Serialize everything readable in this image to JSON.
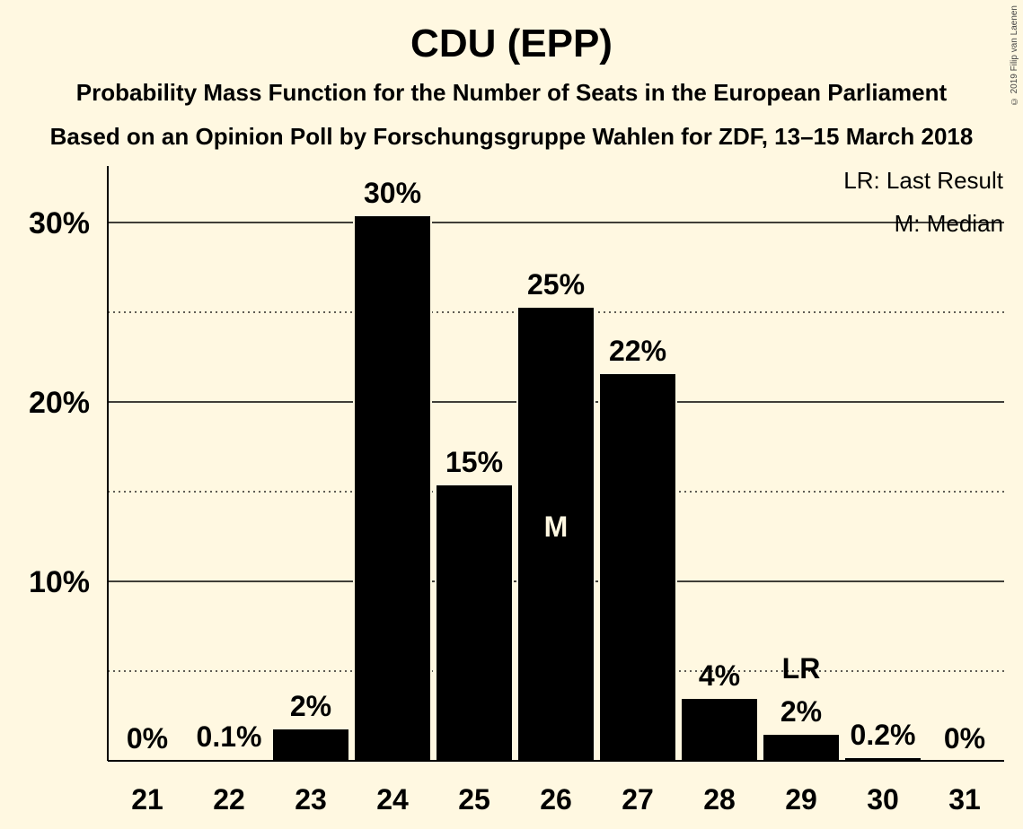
{
  "header": {
    "title": "CDU (EPP)",
    "subtitle": "Probability Mass Function for the Number of Seats in the European Parliament",
    "subtitle2": "Based on an Opinion Poll by Forschungsgruppe Wahlen for ZDF, 13–15 March 2018",
    "copyright": "© 2019 Filip van Laenen"
  },
  "legend": {
    "lr": "LR: Last Result",
    "m": "M: Median",
    "placement": "top-right"
  },
  "chart_data": {
    "type": "bar",
    "title": "CDU (EPP)",
    "xlabel": "",
    "ylabel": "",
    "categories": [
      "21",
      "22",
      "23",
      "24",
      "25",
      "26",
      "27",
      "28",
      "29",
      "30",
      "31"
    ],
    "values": [
      0,
      0.1,
      1.8,
      30.4,
      15.4,
      25.3,
      21.6,
      3.5,
      1.5,
      0.2,
      0
    ],
    "data_labels": [
      "0%",
      "0.1%",
      "2%",
      "30%",
      "15%",
      "25%",
      "22%",
      "4%",
      "2%",
      "0.2%",
      "0%"
    ],
    "ylim": [
      0,
      33
    ],
    "yticks": [
      10,
      20,
      30
    ],
    "ytick_labels": [
      "10%",
      "20%",
      "30%"
    ],
    "minor_gridlines": [
      5,
      15,
      25
    ],
    "median_seat": "26",
    "median_label": "M",
    "last_result_seat": "29",
    "last_result_label": "LR",
    "colors": {
      "background": "#fff8e1",
      "bar": "#000000",
      "bar_outline": "#fff8e1"
    }
  }
}
